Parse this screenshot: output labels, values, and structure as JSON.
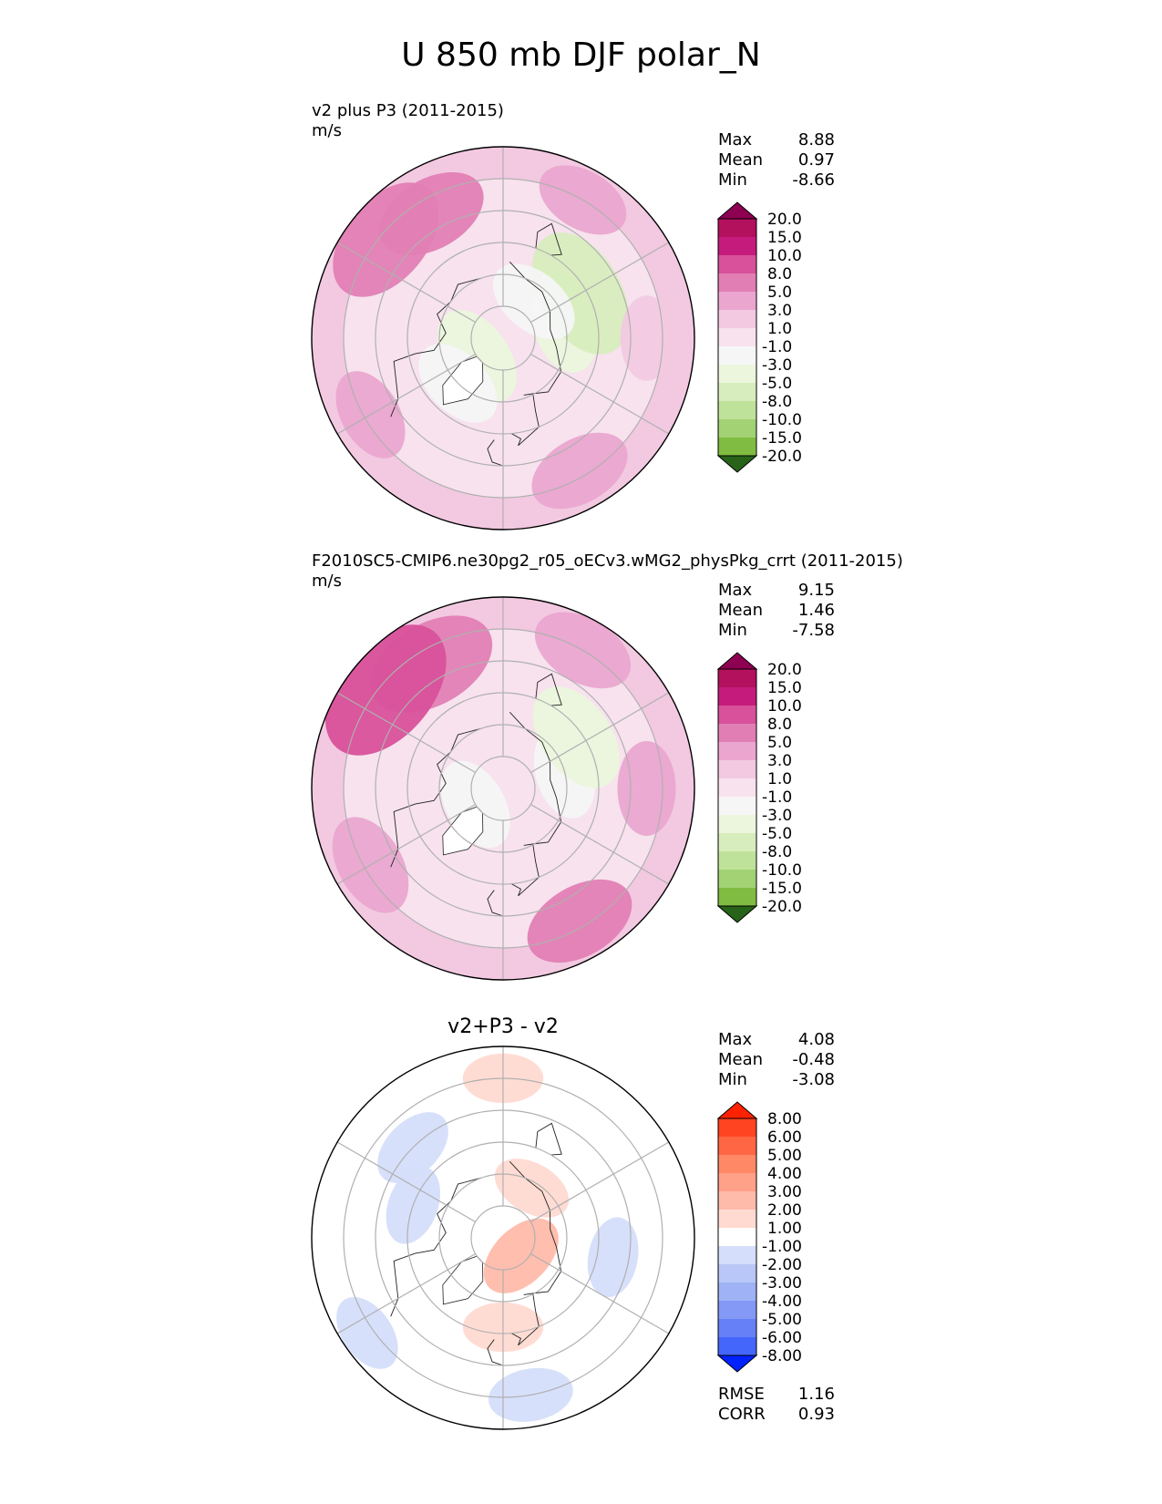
{
  "figure": {
    "title": "U 850 mb DJF polar_N"
  },
  "panels": [
    {
      "title": "v2 plus P3 (2011-2015)",
      "units": "m/s",
      "stats": [
        {
          "label": "Max",
          "value": "8.88"
        },
        {
          "label": "Mean",
          "value": "0.97"
        },
        {
          "label": "Min",
          "value": "-8.66"
        }
      ],
      "colorbar": {
        "labels": [
          "20.0",
          "15.0",
          "10.0",
          "8.0",
          "5.0",
          "3.0",
          "1.0",
          "-1.0",
          "-3.0",
          "-5.0",
          "-8.0",
          "-10.0",
          "-15.0",
          "-20.0"
        ],
        "colors": [
          "#8e0152",
          "#b3105e",
          "#c51b7d",
          "#d8519a",
          "#e17fb4",
          "#eaa6cf",
          "#f2c9e1",
          "#f7e2ee",
          "#f6f6f6",
          "#ebf6dc",
          "#d8edbd",
          "#bfe29a",
          "#a2d274",
          "#7fbc41",
          "#5c9d2e",
          "#3f7f1e",
          "#276419"
        ]
      },
      "fields": [
        {
          "lat": 70,
          "lon": 105,
          "value": -4
        },
        {
          "lat": 62,
          "lon": 120,
          "value": -7
        },
        {
          "lat": 75,
          "lon": 140,
          "value": -3
        },
        {
          "lat": 80,
          "lon": -55,
          "value": -4
        },
        {
          "lat": 70,
          "lon": -45,
          "value": -3
        },
        {
          "lat": 45,
          "lon": -150,
          "value": 5
        },
        {
          "lat": 42,
          "lon": -130,
          "value": 7
        },
        {
          "lat": 42,
          "lon": 30,
          "value": 4
        },
        {
          "lat": 40,
          "lon": 150,
          "value": 3
        },
        {
          "lat": 42,
          "lon": -60,
          "value": 3
        },
        {
          "lat": 45,
          "lon": 90,
          "value": 2
        }
      ]
    },
    {
      "title": "F2010SC5-CMIP6.ne30pg2_r05_oECv3.wMG2_physPkg_crrt (2011-2015)",
      "units": "m/s",
      "stats": [
        {
          "label": "Max",
          "value": "9.15"
        },
        {
          "label": "Mean",
          "value": "1.46"
        },
        {
          "label": "Min",
          "value": "-7.58"
        }
      ],
      "colorbar": {
        "labels": [
          "20.0",
          "15.0",
          "10.0",
          "8.0",
          "5.0",
          "3.0",
          "1.0",
          "-1.0",
          "-3.0",
          "-5.0",
          "-8.0",
          "-10.0",
          "-15.0",
          "-20.0"
        ],
        "colors": [
          "#8e0152",
          "#b3105e",
          "#c51b7d",
          "#d8519a",
          "#e17fb4",
          "#eaa6cf",
          "#f2c9e1",
          "#f7e2ee",
          "#f6f6f6",
          "#ebf6dc",
          "#d8edbd",
          "#bfe29a",
          "#a2d274",
          "#7fbc41",
          "#5c9d2e",
          "#3f7f1e",
          "#276419"
        ]
      },
      "fields": [
        {
          "lat": 70,
          "lon": 105,
          "value": -3
        },
        {
          "lat": 62,
          "lon": 125,
          "value": -5
        },
        {
          "lat": 80,
          "lon": -60,
          "value": -3
        },
        {
          "lat": 45,
          "lon": -150,
          "value": 7
        },
        {
          "lat": 42,
          "lon": -130,
          "value": 9
        },
        {
          "lat": 42,
          "lon": 30,
          "value": 5
        },
        {
          "lat": 40,
          "lon": 150,
          "value": 4
        },
        {
          "lat": 42,
          "lon": -60,
          "value": 4
        },
        {
          "lat": 45,
          "lon": 90,
          "value": 3
        }
      ]
    },
    {
      "title": "v2+P3 - v2",
      "units": "",
      "stats": [
        {
          "label": "Max",
          "value": "4.08"
        },
        {
          "label": "Mean",
          "value": "-0.48"
        },
        {
          "label": "Min",
          "value": "-3.08"
        }
      ],
      "extra_stats": [
        {
          "label": "RMSE",
          "value": "1.16"
        },
        {
          "label": "CORR",
          "value": "0.93"
        }
      ],
      "colorbar": {
        "labels": [
          "8.00",
          "6.00",
          "5.00",
          "4.00",
          "3.00",
          "2.00",
          "1.00",
          "-1.00",
          "-2.00",
          "-3.00",
          "-4.00",
          "-5.00",
          "-6.00",
          "-8.00"
        ],
        "colors": [
          "#ff2200",
          "#ff4422",
          "#ff6644",
          "#ff8866",
          "#ffa088",
          "#ffbbaa",
          "#ffdad1",
          "#ffffff",
          "#d5defa",
          "#b8c7f7",
          "#9fb2f5",
          "#8399f5",
          "#6680f7",
          "#4466fa",
          "#2247fc",
          "#0022ff"
        ]
      },
      "fields": [
        {
          "lat": 82,
          "lon": 45,
          "value": 2.5
        },
        {
          "lat": 72,
          "lon": 150,
          "value": 1.5
        },
        {
          "lat": 40,
          "lon": 180,
          "value": 1.5
        },
        {
          "lat": 62,
          "lon": 0,
          "value": 1.5
        },
        {
          "lat": 50,
          "lon": -135,
          "value": -2
        },
        {
          "lat": 60,
          "lon": -110,
          "value": -1.5
        },
        {
          "lat": 55,
          "lon": 80,
          "value": -1.5
        },
        {
          "lat": 40,
          "lon": 10,
          "value": -2
        },
        {
          "lat": 38,
          "lon": -55,
          "value": -1.5
        },
        {
          "lat": 40,
          "lon": 120,
          "value": -1
        }
      ]
    }
  ]
}
